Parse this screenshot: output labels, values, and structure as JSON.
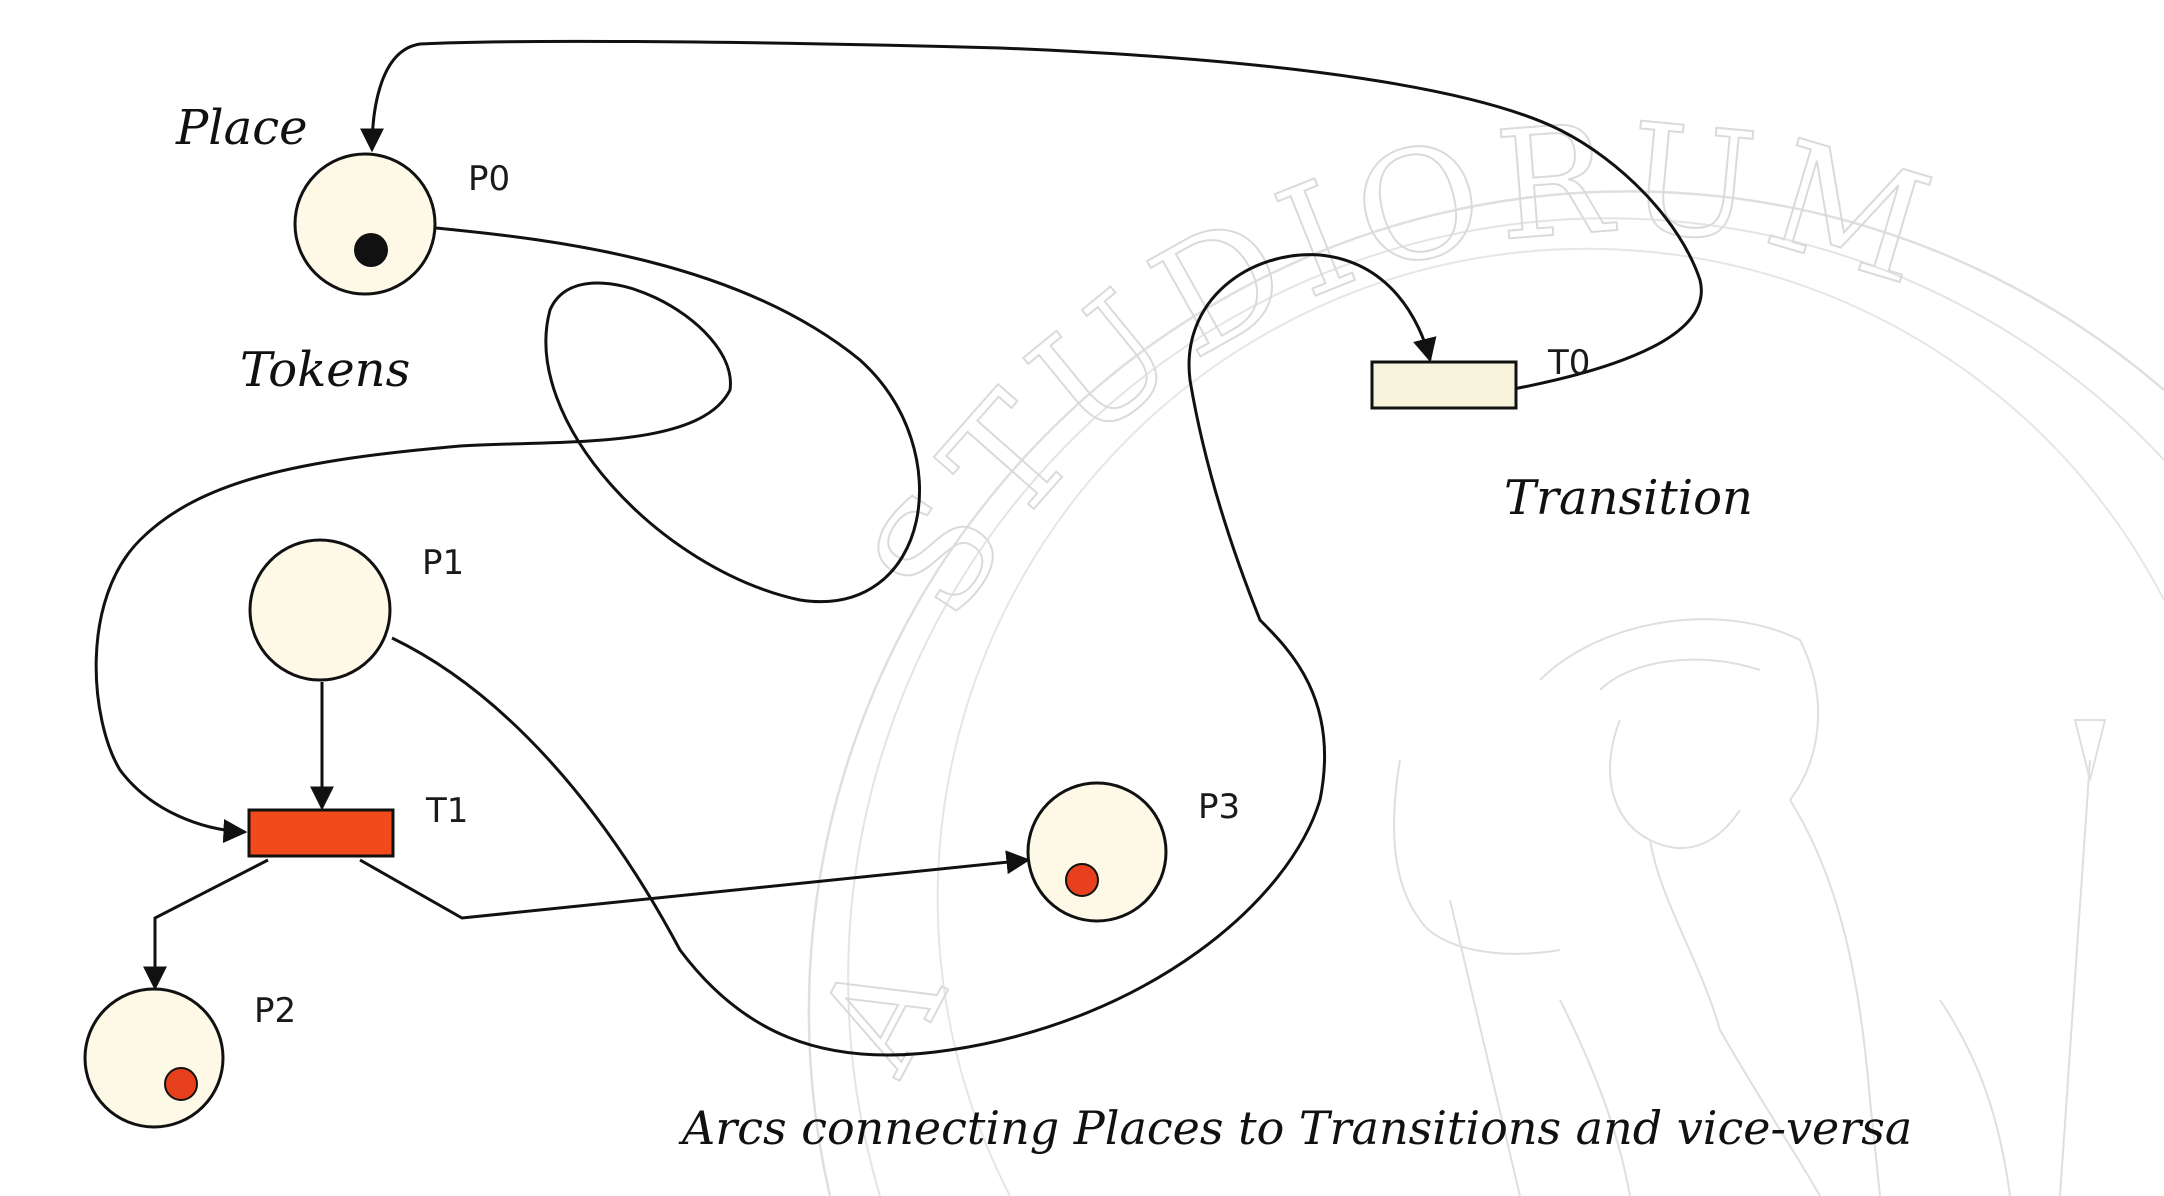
{
  "annotations": {
    "place": "Place",
    "tokens": "Tokens",
    "transition": "Transition",
    "arcs": "Arcs connecting Places to Transitions and vice-versa"
  },
  "places": [
    {
      "id": "P0",
      "label": "P0",
      "tokens": 1,
      "token_color": "#111111"
    },
    {
      "id": "P1",
      "label": "P1",
      "tokens": 0,
      "token_color": ""
    },
    {
      "id": "P2",
      "label": "P2",
      "tokens": 1,
      "token_color": "#e8401c"
    },
    {
      "id": "P3",
      "label": "P3",
      "tokens": 1,
      "token_color": "#e8401c"
    }
  ],
  "transitions": [
    {
      "id": "T0",
      "label": "T0",
      "enabled": false,
      "fill": "#f7f2dc"
    },
    {
      "id": "T1",
      "label": "T1",
      "enabled": true,
      "fill": "#f24a1b"
    }
  ],
  "arcs": [
    {
      "from": "T0",
      "to": "P0"
    },
    {
      "from": "P0",
      "to": "T1"
    },
    {
      "from": "P1",
      "to": "T1"
    },
    {
      "from": "P1",
      "to": "T0"
    },
    {
      "from": "T1",
      "to": "P2"
    },
    {
      "from": "T1",
      "to": "P3"
    }
  ],
  "watermark": {
    "text": "STUDIORUM",
    "fragment_left": "A",
    "fragment_right": "M"
  },
  "colors": {
    "place_fill": "#fdf9e6",
    "stroke": "#111111",
    "token_red": "#e8401c",
    "transition_enabled": "#f24a1b",
    "transition_disabled": "#f7f2dc"
  }
}
